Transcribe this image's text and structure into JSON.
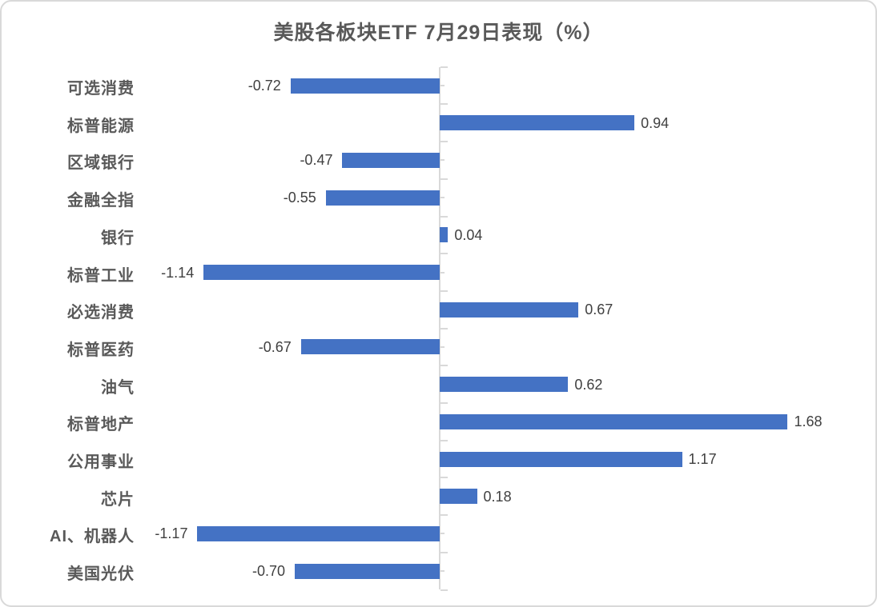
{
  "chart_data": {
    "type": "bar",
    "orientation": "horizontal",
    "title": "美股各板块ETF 7月29日表现（%）",
    "categories": [
      "可选消费",
      "标普能源",
      "区域银行",
      "金融全指",
      "银行",
      "标普工业",
      "必选消费",
      "标普医药",
      "油气",
      "标普地产",
      "公用事业",
      "芯片",
      "AI、机器人",
      "美国光伏"
    ],
    "values": [
      -0.72,
      0.94,
      -0.47,
      -0.55,
      0.04,
      -1.14,
      0.67,
      -0.67,
      0.62,
      1.68,
      1.17,
      0.18,
      -1.17,
      -0.7
    ],
    "value_labels": [
      "-0.72",
      "0.94",
      "-0.47",
      "-0.55",
      "0.04",
      "-1.14",
      "0.67",
      "-0.67",
      "0.62",
      "1.68",
      "1.17",
      "0.18",
      "-1.17",
      "-0.70"
    ],
    "value_label_position": "outside-end",
    "xlim": [
      -1.4,
      2.1
    ],
    "xlabel": "",
    "ylabel": "",
    "grid": false,
    "legend": false,
    "colors": {
      "bar": "#4472C4",
      "axis": "#D9D9D9",
      "tick": "#D9D9D9",
      "title": "#595959",
      "category_label": "#595959",
      "value_label": "#404040",
      "background": "#FFFFFF",
      "border": "#D9D9D9"
    }
  }
}
